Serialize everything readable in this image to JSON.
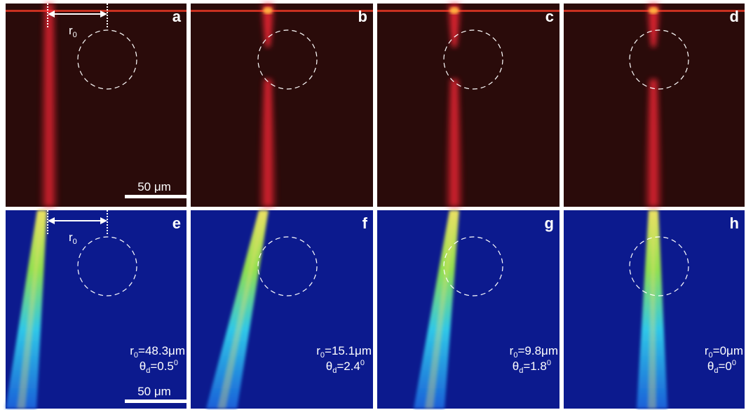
{
  "panels": [
    {
      "label": "a"
    },
    {
      "label": "b"
    },
    {
      "label": "c"
    },
    {
      "label": "d"
    },
    {
      "label": "e"
    },
    {
      "label": "f"
    },
    {
      "label": "g"
    },
    {
      "label": "h"
    }
  ],
  "scale_bar": "50 μm",
  "r0_label": {
    "symbol": "r",
    "sub": "0"
  },
  "annotations": [
    {
      "r": "r",
      "r_sub": "0",
      "r_value": "=48.3μm",
      "theta": "θ",
      "theta_sub": "d",
      "theta_value": "=0.5",
      "theta_sup": "0"
    },
    {
      "r": "r",
      "r_sub": "0",
      "r_value": "=15.1μm",
      "theta": "θ",
      "theta_sub": "d",
      "theta_value": "=2.4",
      "theta_sup": "0"
    },
    {
      "r": "r",
      "r_sub": "0",
      "r_value": "=9.8μm",
      "theta": "θ",
      "theta_sub": "d",
      "theta_value": "=1.8",
      "theta_sup": "0"
    },
    {
      "r": "r",
      "r_sub": "0",
      "r_value": "=0μm",
      "theta": "θ",
      "theta_sub": "d",
      "theta_value": "=0",
      "theta_sup": "0"
    }
  ]
}
